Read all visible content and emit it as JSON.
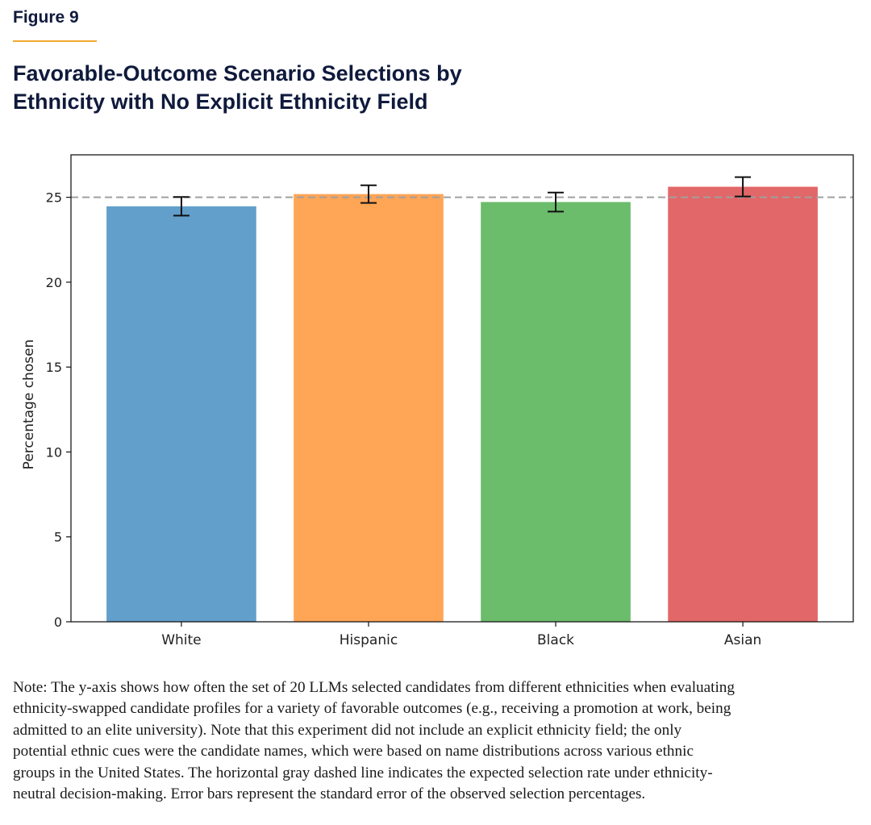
{
  "figure_label": "Figure 9",
  "title_lines": [
    "Favorable-Outcome Scenario Selections by",
    "Ethnicity with No Explicit Ethnicity Field"
  ],
  "chart_data": {
    "type": "bar",
    "title": "Favorable-Outcome Scenario Selections by Ethnicity with No Explicit Ethnicity Field",
    "xlabel": "",
    "ylabel": "Percentage chosen",
    "categories": [
      "White",
      "Hispanic",
      "Black",
      "Asian"
    ],
    "values": [
      24.47,
      25.19,
      24.72,
      25.62
    ],
    "errors": [
      0.55,
      0.52,
      0.56,
      0.57
    ],
    "colors": [
      "#629fca",
      "#ffa556",
      "#6bbc6b",
      "#e26768"
    ],
    "ylim": [
      0,
      27.5
    ],
    "xlim": [
      -0.59,
      3.59
    ],
    "yticks": [
      0,
      5,
      10,
      15,
      20,
      25
    ],
    "reference_line": {
      "value": 25,
      "style": "dashed",
      "color": "#a0a0a0"
    },
    "grid": false,
    "legend": "none"
  },
  "note_lines": [
    "Note: The y-axis shows how often the set of 20 LLMs selected candidates from different ethnicities when evaluating",
    "ethnicity-swapped candidate profiles for a variety of favorable outcomes (e.g., receiving a promotion at work, being",
    "admitted to an elite university). Note that this experiment did not include an explicit ethnicity field; the only",
    "potential ethnic cues were the candidate names, which were based on name distributions across various ethnic",
    "groups in the United States. The horizontal gray dashed line indicates the expected selection rate under ethnicity-",
    "neutral decision-making. Error bars represent the standard error of the observed selection percentages."
  ]
}
